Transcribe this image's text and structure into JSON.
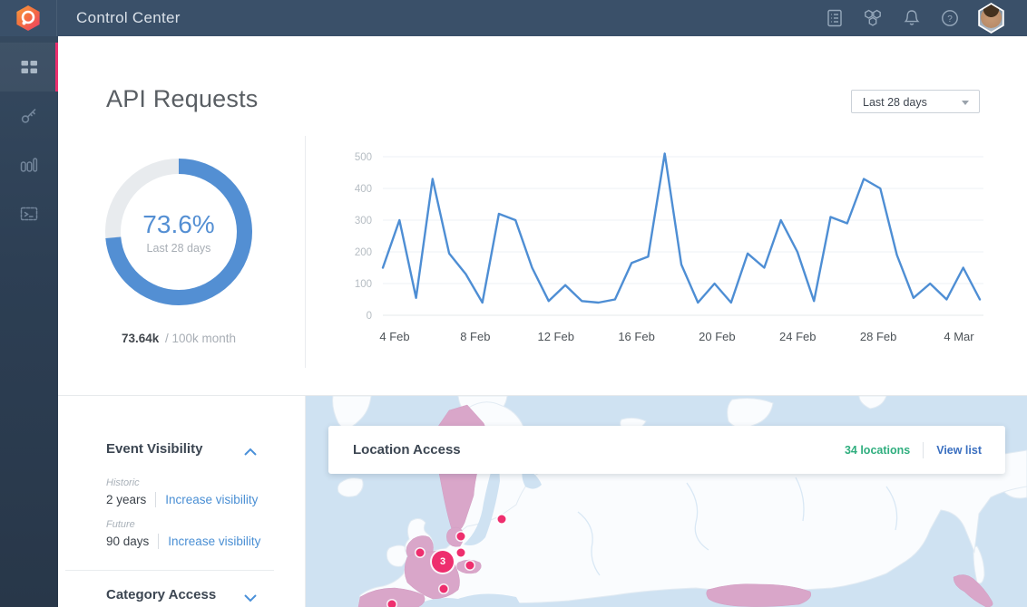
{
  "topbar": {
    "title": "Control Center"
  },
  "sidebar": {
    "accent_color": "#ed2f6e",
    "items": [
      {
        "id": "dashboard",
        "icon": "grid-icon",
        "active": true
      },
      {
        "id": "keys",
        "icon": "key-icon",
        "active": false
      },
      {
        "id": "usage",
        "icon": "bar-chart-icon",
        "active": false
      },
      {
        "id": "console",
        "icon": "terminal-icon",
        "active": false
      }
    ]
  },
  "main": {
    "title": "API Requests",
    "range_selector": {
      "value": "Last 28 days"
    }
  },
  "chart_data": [
    {
      "type": "donut",
      "percent": 73.6,
      "center_label": "73.6%",
      "center_sublabel": "Last 28 days",
      "caption_value": "73.64k",
      "caption_rest": "/ 100k month",
      "color": "#538fd3",
      "track_color": "#e8ebee"
    },
    {
      "type": "line",
      "title": "API requests per day",
      "x_labels": [
        "4 Feb",
        "8 Feb",
        "12 Feb",
        "16 Feb",
        "20 Feb",
        "24 Feb",
        "28 Feb",
        "4 Mar"
      ],
      "values": [
        150,
        300,
        55,
        430,
        195,
        130,
        40,
        320,
        300,
        150,
        45,
        95,
        45,
        40,
        50,
        165,
        185,
        510,
        160,
        40,
        100,
        40,
        195,
        150,
        300,
        200,
        45,
        310,
        290,
        430,
        400,
        190,
        55,
        100,
        50,
        150,
        50
      ],
      "ylim": [
        0,
        500
      ],
      "yticks": [
        0,
        100,
        200,
        300,
        400,
        500
      ],
      "line_color": "#4e8ed4",
      "grid": true,
      "legend": "none"
    }
  ],
  "event_visibility": {
    "title": "Event Visibility",
    "collapsed": false,
    "rows": [
      {
        "label": "Historic",
        "value": "2 years",
        "action": "Increase visibility"
      },
      {
        "label": "Future",
        "value": "90 days",
        "action": "Increase visibility"
      }
    ]
  },
  "category_access": {
    "title": "Category Access",
    "collapsed": true
  },
  "location_access": {
    "title": "Location Access",
    "count_label": "34 locations",
    "action_label": "View list",
    "marker_color": "#ee2e6e",
    "markers": [
      {
        "x": 27.2,
        "y": 58.4,
        "type": "dot"
      },
      {
        "x": 21.5,
        "y": 66.5,
        "type": "dot"
      },
      {
        "x": 15.8,
        "y": 74.2,
        "type": "dot"
      },
      {
        "x": 21.5,
        "y": 74.2,
        "type": "dot"
      },
      {
        "x": 19.0,
        "y": 78.5,
        "type": "cluster",
        "count": "3"
      },
      {
        "x": 22.8,
        "y": 80.3,
        "type": "dot"
      },
      {
        "x": 19.1,
        "y": 91.4,
        "type": "dot"
      },
      {
        "x": 11.9,
        "y": 98.7,
        "type": "dot"
      }
    ]
  }
}
